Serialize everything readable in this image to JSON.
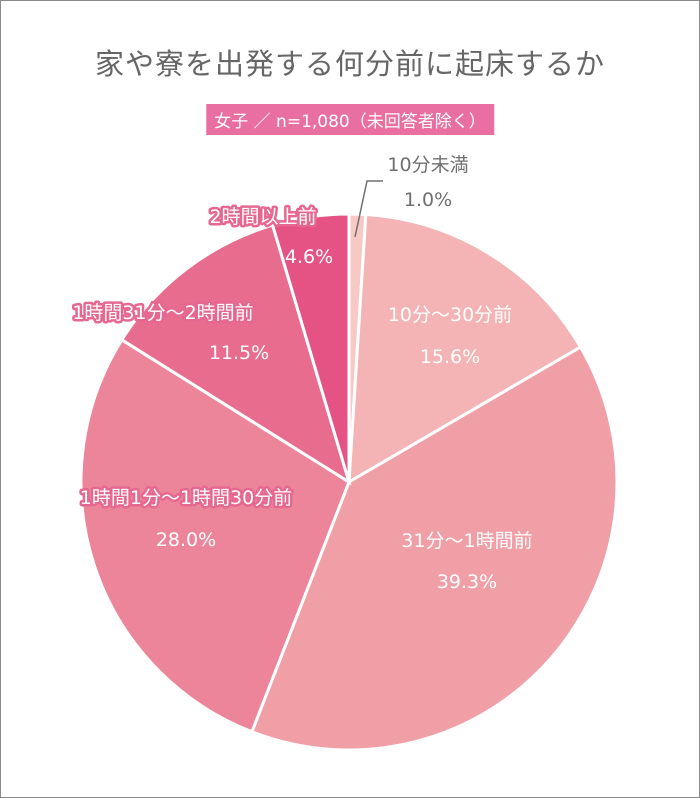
{
  "chart_data": {
    "type": "pie",
    "title": "家や寮を出発する何分前に起床するか",
    "subtitle": "女子 ／ n=1,080（未回答者除く）",
    "start": "top",
    "direction": "clockwise",
    "slices": [
      {
        "label": "10分未満",
        "value": 1.0,
        "display": "1.0%",
        "color": "#f6c9c4"
      },
      {
        "label": "10分〜30分前",
        "value": 15.6,
        "display": "15.6%",
        "color": "#f4b3b4"
      },
      {
        "label": "31分〜1時間前",
        "value": 39.3,
        "display": "39.3%",
        "color": "#f09fa7"
      },
      {
        "label": "1時間1分〜1時間30分前",
        "value": 28.0,
        "display": "28.0%",
        "color": "#ec8599"
      },
      {
        "label": "1時間31分〜2時間前",
        "value": 11.5,
        "display": "11.5%",
        "color": "#e86c8d"
      },
      {
        "label": "2時間以上前",
        "value": 4.6,
        "display": "4.6%",
        "color": "#e55284"
      }
    ]
  }
}
